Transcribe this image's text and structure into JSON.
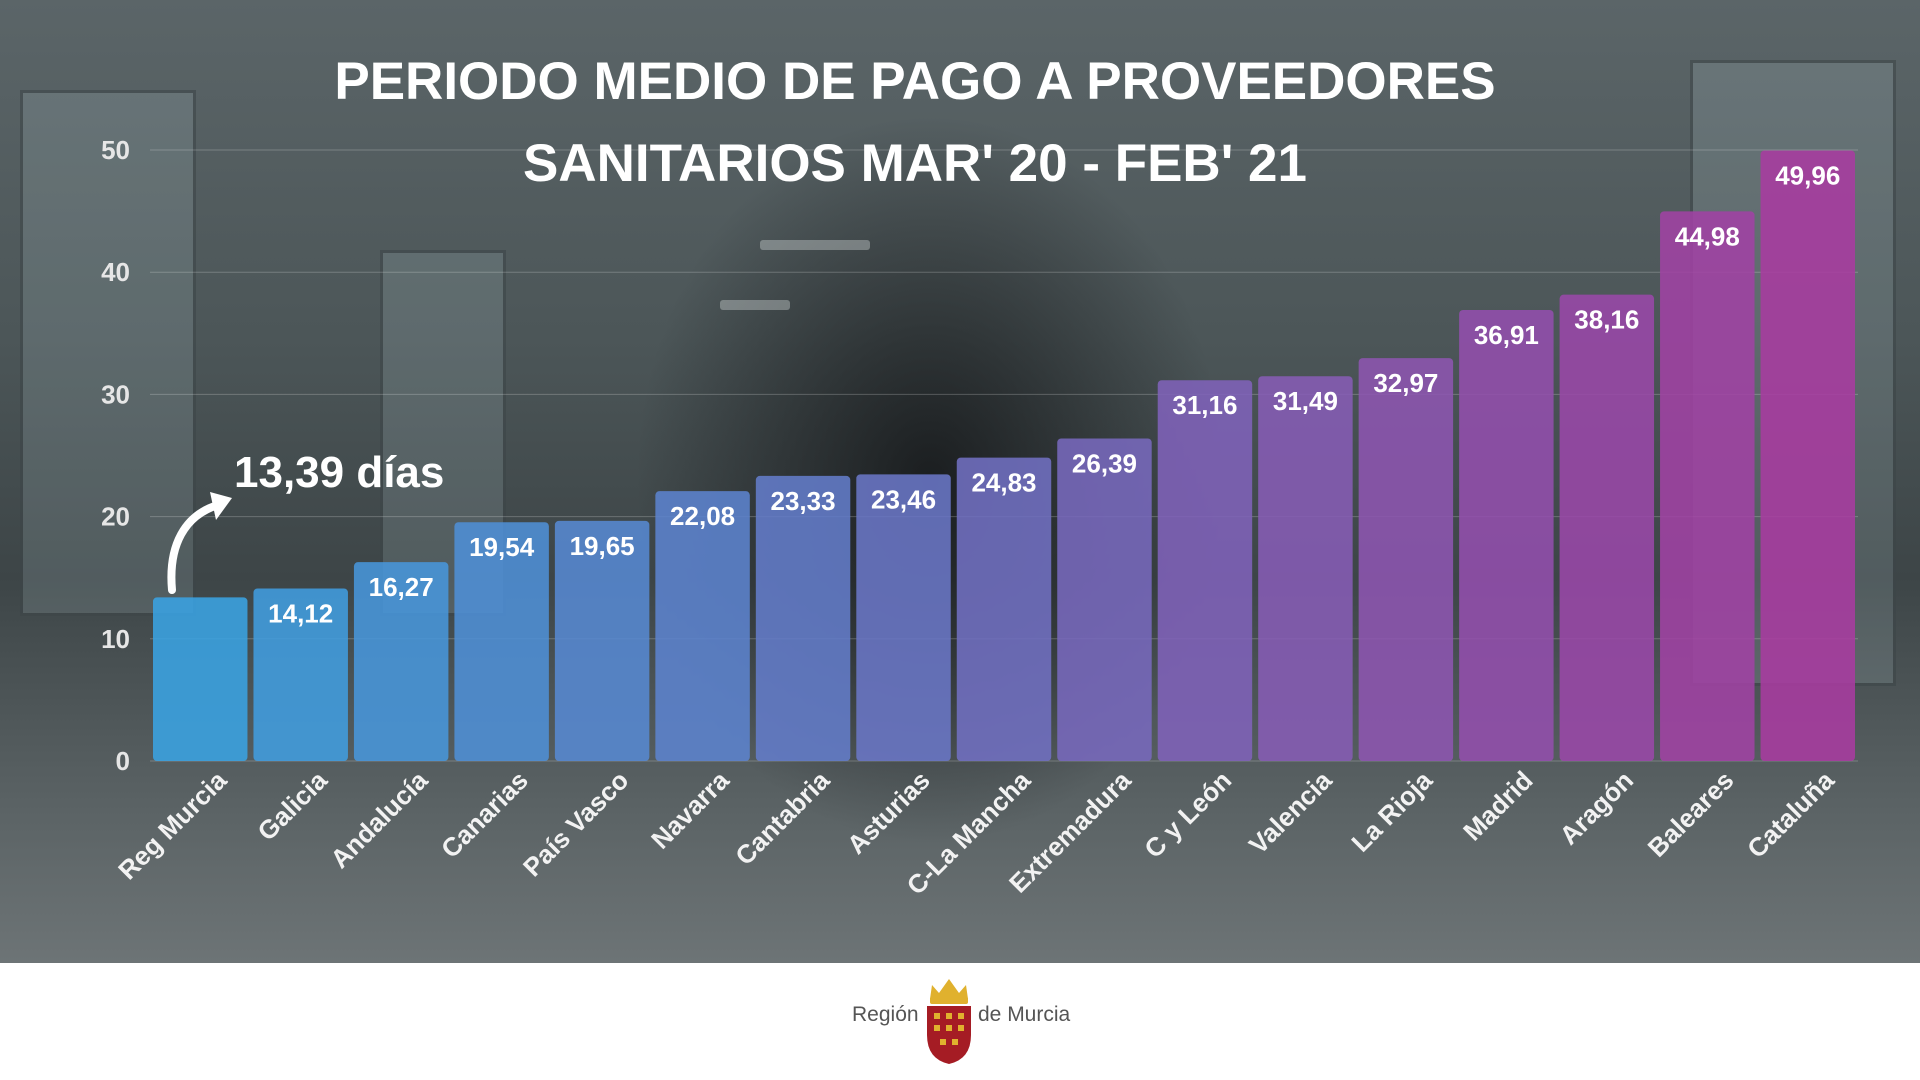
{
  "chart_data": {
    "type": "bar",
    "title_lines": [
      "PERIODO MEDIO DE PAGO A PROVEEDORES",
      "SANITARIOS MAR' 20 - FEB' 21"
    ],
    "categories": [
      "Reg Murcia",
      "Galicia",
      "Andalucía",
      "Canarias",
      "País Vasco",
      "Navarra",
      "Cantabria",
      "Asturias",
      "C-La Mancha",
      "Extremadura",
      "C y León",
      "Valencia",
      "La Rioja",
      "Madrid",
      "Aragón",
      "Baleares",
      "Cataluña"
    ],
    "values": [
      13.39,
      14.12,
      16.27,
      19.54,
      19.65,
      22.08,
      23.33,
      23.46,
      24.83,
      26.39,
      31.16,
      31.49,
      32.97,
      36.91,
      38.16,
      44.98,
      49.96
    ],
    "data_labels": [
      "",
      "14,12",
      "16,27",
      "19,54",
      "19,65",
      "22,08",
      "23,33",
      "23,46",
      "24,83",
      "26,39",
      "31,16",
      "31,49",
      "32,97",
      "36,91",
      "38,16",
      "44,98",
      "49,96"
    ],
    "yticks": [
      "0",
      "10",
      "20",
      "30",
      "40",
      "50"
    ],
    "ylim": [
      0,
      50
    ],
    "grid": true,
    "annotation": "13,39 días",
    "bar_color_start": "#3aa3e3",
    "bar_color_end": "#a83ba0"
  },
  "footer": {
    "logo_left": "Región",
    "logo_right": "de Murcia"
  },
  "colors": {
    "emblem_red": "#a51c24",
    "emblem_gold": "#e0b12e"
  }
}
